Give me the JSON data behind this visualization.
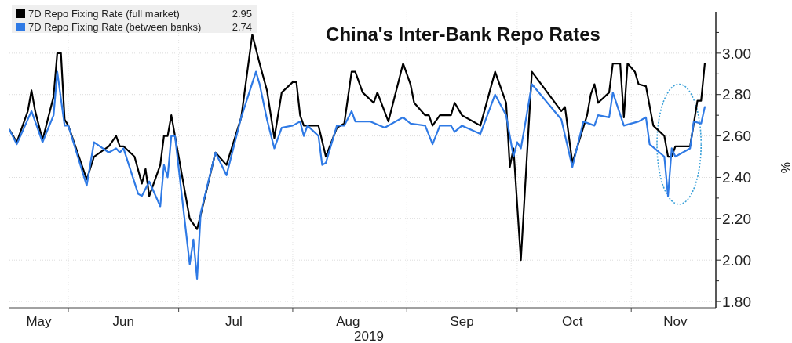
{
  "chart_data": {
    "type": "line",
    "title": "China's Inter-Bank Repo Rates",
    "xlabel": "2019",
    "ylabel": "%",
    "xlim": [
      "2019-05-16",
      "2019-11-24"
    ],
    "xticks": [
      {
        "value": "2019-06-01",
        "label": null
      },
      {
        "value": "2019-07-01",
        "label": null
      },
      {
        "value": "2019-08-01",
        "label": null
      },
      {
        "value": "2019-09-01",
        "label": null
      },
      {
        "value": "2019-10-01",
        "label": null
      },
      {
        "value": "2019-11-01",
        "label": null
      },
      {
        "value": "2019-05-24",
        "label": "May"
      },
      {
        "value": "2019-06-16",
        "label": "Jun"
      },
      {
        "value": "2019-07-16",
        "label": "Jul"
      },
      {
        "value": "2019-08-16",
        "label": "Aug"
      },
      {
        "value": "2019-09-16",
        "label": "Sep"
      },
      {
        "value": "2019-10-16",
        "label": "Oct"
      },
      {
        "value": "2019-11-13",
        "label": "Nov"
      }
    ],
    "ylim": [
      1.77,
      3.2
    ],
    "yticks": [
      {
        "value": 1.8,
        "label": "1.80"
      },
      {
        "value": 1.9,
        "label": null
      },
      {
        "value": 2.0,
        "label": "2.00"
      },
      {
        "value": 2.1,
        "label": null
      },
      {
        "value": 2.2,
        "label": "2.20"
      },
      {
        "value": 2.3,
        "label": null
      },
      {
        "value": 2.4,
        "label": "2.40"
      },
      {
        "value": 2.5,
        "label": null
      },
      {
        "value": 2.6,
        "label": "2.60"
      },
      {
        "value": 2.7,
        "label": null
      },
      {
        "value": 2.8,
        "label": "2.80"
      },
      {
        "value": 2.9,
        "label": null
      },
      {
        "value": 3.0,
        "label": "3.00"
      },
      {
        "value": 3.1,
        "label": null
      }
    ],
    "annotations": [
      "2.95",
      "2.74"
    ],
    "grid": true,
    "legend": "top left",
    "line_style": "solid",
    "marker": "none",
    "series": [
      {
        "name": "7D Repo Fixing Rate (full market)",
        "color": "#000000",
        "x": [
          "2019-05-16",
          "2019-05-18",
          "2019-05-21",
          "2019-05-22",
          "2019-05-23",
          "2019-05-25",
          "2019-05-28",
          "2019-05-29",
          "2019-05-30",
          "2019-05-31",
          "2019-06-01",
          "2019-06-06",
          "2019-06-08",
          "2019-06-12",
          "2019-06-14",
          "2019-06-15",
          "2019-06-16",
          "2019-06-19",
          "2019-06-21",
          "2019-06-22",
          "2019-06-23",
          "2019-06-26",
          "2019-06-27",
          "2019-06-28",
          "2019-06-29",
          "2019-06-30",
          "2019-07-04",
          "2019-07-06",
          "2019-07-07",
          "2019-07-11",
          "2019-07-14",
          "2019-07-18",
          "2019-07-21",
          "2019-07-23",
          "2019-07-25",
          "2019-07-27",
          "2019-07-29",
          "2019-08-01",
          "2019-08-02",
          "2019-08-03",
          "2019-08-04",
          "2019-08-08",
          "2019-08-10",
          "2019-08-13",
          "2019-08-15",
          "2019-08-17",
          "2019-08-18",
          "2019-08-20",
          "2019-08-23",
          "2019-08-24",
          "2019-08-27",
          "2019-08-31",
          "2019-09-02",
          "2019-09-03",
          "2019-09-06",
          "2019-09-07",
          "2019-09-08",
          "2019-09-10",
          "2019-09-13",
          "2019-09-14",
          "2019-09-16",
          "2019-09-21",
          "2019-09-25",
          "2019-09-28",
          "2019-09-29",
          "2019-09-30",
          "2019-10-02",
          "2019-10-05",
          "2019-10-13",
          "2019-10-14",
          "2019-10-16",
          "2019-10-20",
          "2019-10-21",
          "2019-10-22",
          "2019-10-23",
          "2019-10-26",
          "2019-10-27",
          "2019-10-29",
          "2019-10-30",
          "2019-10-31",
          "2019-11-02",
          "2019-11-03",
          "2019-11-05",
          "2019-11-07",
          "2019-11-10",
          "2019-11-11",
          "2019-11-12",
          "2019-11-13",
          "2019-11-17",
          "2019-11-19",
          "2019-11-20",
          "2019-11-21"
        ],
        "values": [
          2.63,
          2.57,
          2.72,
          2.82,
          2.72,
          2.58,
          2.79,
          3.0,
          3.0,
          2.68,
          2.65,
          2.39,
          2.5,
          2.55,
          2.6,
          2.55,
          2.55,
          2.5,
          2.37,
          2.44,
          2.31,
          2.46,
          2.6,
          2.6,
          2.7,
          2.6,
          2.2,
          2.15,
          2.22,
          2.52,
          2.46,
          2.69,
          3.09,
          2.95,
          2.82,
          2.59,
          2.81,
          2.86,
          2.86,
          2.7,
          2.65,
          2.65,
          2.5,
          2.64,
          2.66,
          2.91,
          2.91,
          2.81,
          2.76,
          2.81,
          2.67,
          2.95,
          2.85,
          2.76,
          2.7,
          2.7,
          2.65,
          2.7,
          2.7,
          2.76,
          2.7,
          2.65,
          2.91,
          2.76,
          2.45,
          2.54,
          2.0,
          2.91,
          2.72,
          2.74,
          2.47,
          2.7,
          2.8,
          2.85,
          2.76,
          2.81,
          2.95,
          2.95,
          2.69,
          2.95,
          2.91,
          2.85,
          2.84,
          2.65,
          2.6,
          2.5,
          2.5,
          2.55,
          2.55,
          2.77,
          2.77,
          2.95
        ]
      },
      {
        "name": "7D Repo Fixing Rate (between banks)",
        "color": "#2f7ae5",
        "x": [
          "2019-05-16",
          "2019-05-18",
          "2019-05-22",
          "2019-05-25",
          "2019-05-28",
          "2019-05-29",
          "2019-05-31",
          "2019-06-01",
          "2019-06-06",
          "2019-06-08",
          "2019-06-12",
          "2019-06-14",
          "2019-06-15",
          "2019-06-16",
          "2019-06-20",
          "2019-06-21",
          "2019-06-23",
          "2019-06-26",
          "2019-06-27",
          "2019-06-28",
          "2019-06-29",
          "2019-06-30",
          "2019-07-04",
          "2019-07-05",
          "2019-07-06",
          "2019-07-07",
          "2019-07-11",
          "2019-07-14",
          "2019-07-18",
          "2019-07-22",
          "2019-07-23",
          "2019-07-25",
          "2019-07-27",
          "2019-07-29",
          "2019-08-01",
          "2019-08-03",
          "2019-08-04",
          "2019-08-05",
          "2019-08-08",
          "2019-08-09",
          "2019-08-10",
          "2019-08-13",
          "2019-08-15",
          "2019-08-17",
          "2019-08-18",
          "2019-08-22",
          "2019-08-26",
          "2019-08-31",
          "2019-09-02",
          "2019-09-06",
          "2019-09-08",
          "2019-09-10",
          "2019-09-13",
          "2019-09-14",
          "2019-09-16",
          "2019-09-21",
          "2019-09-25",
          "2019-09-28",
          "2019-09-30",
          "2019-10-01",
          "2019-10-02",
          "2019-10-03",
          "2019-10-05",
          "2019-10-13",
          "2019-10-16",
          "2019-10-19",
          "2019-10-22",
          "2019-10-23",
          "2019-10-26",
          "2019-10-27",
          "2019-10-30",
          "2019-11-03",
          "2019-11-05",
          "2019-11-06",
          "2019-11-10",
          "2019-11-11",
          "2019-11-12",
          "2019-11-13",
          "2019-11-17",
          "2019-11-18",
          "2019-11-20",
          "2019-11-21"
        ],
        "values": [
          2.63,
          2.56,
          2.72,
          2.57,
          2.7,
          2.91,
          2.65,
          2.65,
          2.36,
          2.57,
          2.52,
          2.54,
          2.52,
          2.54,
          2.32,
          2.31,
          2.38,
          2.26,
          2.46,
          2.4,
          2.6,
          2.6,
          1.98,
          2.1,
          1.91,
          2.23,
          2.52,
          2.41,
          2.69,
          2.91,
          2.85,
          2.68,
          2.54,
          2.64,
          2.65,
          2.67,
          2.6,
          2.65,
          2.6,
          2.46,
          2.47,
          2.65,
          2.65,
          2.72,
          2.67,
          2.67,
          2.64,
          2.69,
          2.66,
          2.65,
          2.56,
          2.65,
          2.65,
          2.62,
          2.65,
          2.61,
          2.8,
          2.7,
          2.5,
          2.57,
          2.54,
          2.64,
          2.85,
          2.68,
          2.45,
          2.67,
          2.65,
          2.7,
          2.69,
          2.81,
          2.65,
          2.67,
          2.69,
          2.56,
          2.5,
          2.31,
          2.54,
          2.5,
          2.54,
          2.67,
          2.66,
          2.74
        ]
      }
    ]
  }
}
